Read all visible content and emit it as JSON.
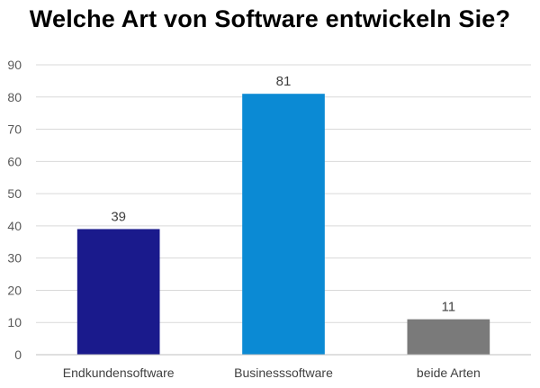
{
  "chart_data": {
    "type": "bar",
    "title": "Welche Art von Software entwickeln Sie?",
    "categories": [
      "Endkundensoftware",
      "Businesssoftware",
      "beide Arten"
    ],
    "values": [
      39,
      81,
      11
    ],
    "colors": [
      "#1a1a8c",
      "#0b8ad4",
      "#7a7a7a"
    ],
    "ylim": [
      0,
      90
    ],
    "yticks": [
      0,
      10,
      20,
      30,
      40,
      50,
      60,
      70,
      80,
      90
    ],
    "grid": true,
    "data_labels": true
  }
}
